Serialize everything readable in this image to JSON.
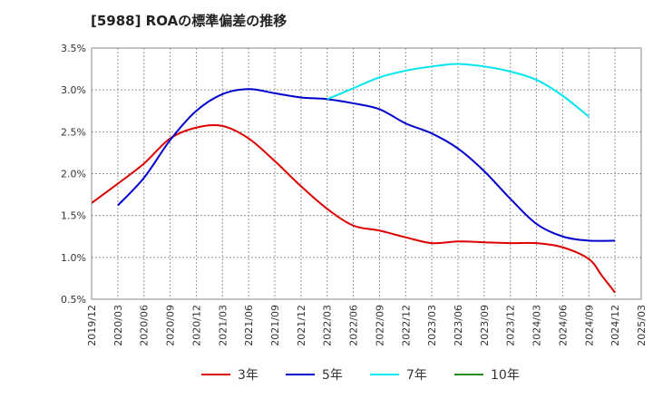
{
  "chart_data": {
    "type": "line",
    "title": "[5988]  ROAの標準偏差の推移",
    "xlabel": "",
    "ylabel": "",
    "ylim": [
      0.5,
      3.5
    ],
    "y_ticks": [
      "0.5%",
      "1.0%",
      "1.5%",
      "2.0%",
      "2.5%",
      "3.0%",
      "3.5%"
    ],
    "y_tick_values": [
      0.5,
      1.0,
      1.5,
      2.0,
      2.5,
      3.0,
      3.5
    ],
    "x_ticks": [
      "2019/12",
      "2020/03",
      "2020/06",
      "2020/09",
      "2020/12",
      "2021/03",
      "2021/06",
      "2021/09",
      "2021/12",
      "2022/03",
      "2022/06",
      "2022/09",
      "2022/12",
      "2023/03",
      "2023/06",
      "2023/09",
      "2023/12",
      "2024/03",
      "2024/06",
      "2024/09",
      "2024/12",
      "2025/03"
    ],
    "grid": true,
    "legend_position": "bottom",
    "series": [
      {
        "name": "3年",
        "color": "#dd0000",
        "points": [
          [
            0,
            1.65
          ],
          [
            1,
            1.88
          ],
          [
            2,
            2.12
          ],
          [
            3,
            2.42
          ],
          [
            4,
            2.55
          ],
          [
            5,
            2.57
          ],
          [
            6,
            2.42
          ],
          [
            7,
            2.15
          ],
          [
            8,
            1.85
          ],
          [
            9,
            1.58
          ],
          [
            10,
            1.38
          ],
          [
            11,
            1.32
          ],
          [
            12,
            1.24
          ],
          [
            13,
            1.17
          ],
          [
            14,
            1.19
          ],
          [
            15,
            1.18
          ],
          [
            16,
            1.17
          ],
          [
            17,
            1.17
          ],
          [
            18,
            1.12
          ],
          [
            19,
            0.98
          ],
          [
            19.5,
            0.78
          ],
          [
            20,
            0.58
          ]
        ]
      },
      {
        "name": "5年",
        "color": "#0000cc",
        "points": [
          [
            1,
            1.62
          ],
          [
            2,
            1.95
          ],
          [
            3,
            2.4
          ],
          [
            4,
            2.75
          ],
          [
            5,
            2.95
          ],
          [
            6,
            3.01
          ],
          [
            7,
            2.96
          ],
          [
            8,
            2.91
          ],
          [
            9,
            2.89
          ],
          [
            10,
            2.84
          ],
          [
            11,
            2.77
          ],
          [
            12,
            2.6
          ],
          [
            13,
            2.48
          ],
          [
            14,
            2.3
          ],
          [
            15,
            2.03
          ],
          [
            16,
            1.7
          ],
          [
            17,
            1.4
          ],
          [
            18,
            1.25
          ],
          [
            19,
            1.2
          ],
          [
            20,
            1.2
          ]
        ]
      },
      {
        "name": "7年",
        "color": "#00e5ee",
        "points": [
          [
            9,
            2.89
          ],
          [
            10,
            3.02
          ],
          [
            11,
            3.15
          ],
          [
            12,
            3.23
          ],
          [
            13,
            3.28
          ],
          [
            14,
            3.31
          ],
          [
            15,
            3.28
          ],
          [
            16,
            3.22
          ],
          [
            17,
            3.12
          ],
          [
            18,
            2.93
          ],
          [
            19,
            2.68
          ]
        ]
      },
      {
        "name": "10年",
        "color": "#228b22",
        "points": []
      }
    ]
  }
}
